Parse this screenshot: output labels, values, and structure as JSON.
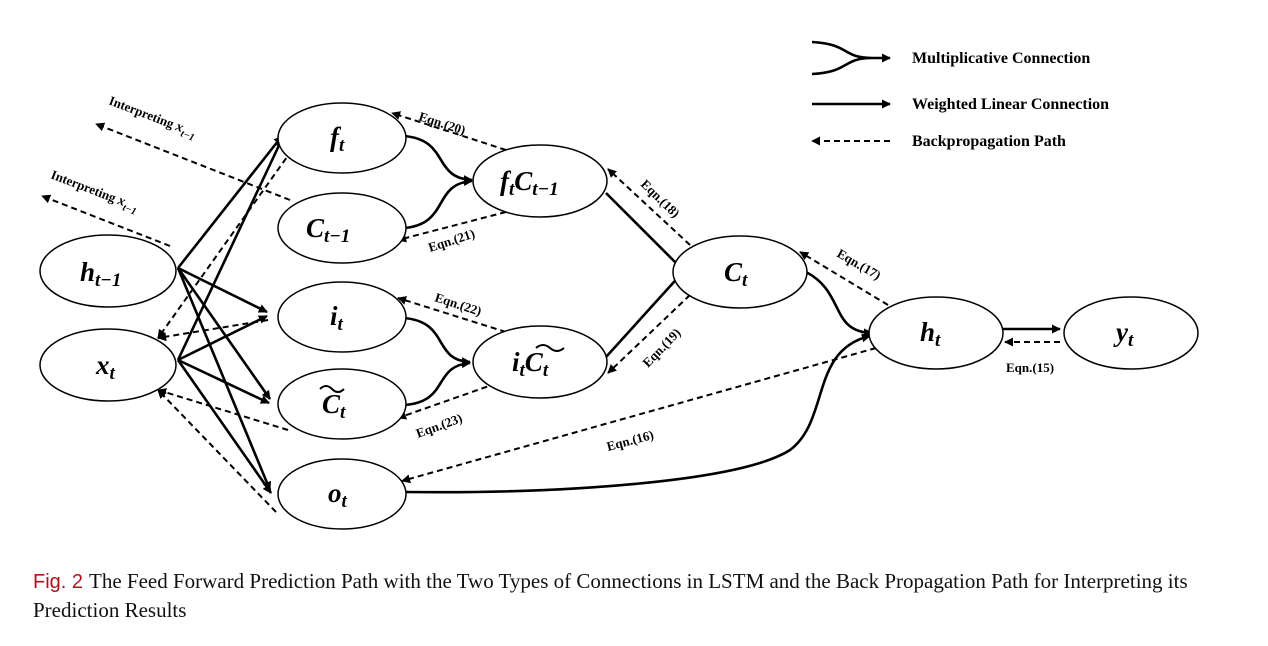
{
  "nodes": {
    "h_prev": {
      "main": "h",
      "sub": "t−1"
    },
    "x_t": {
      "main": "x",
      "sub": "t"
    },
    "f_t": {
      "main": "f",
      "sub": "t"
    },
    "c_prev": {
      "main": "C",
      "sub": "t−1"
    },
    "i_t": {
      "main": "i",
      "sub": "t"
    },
    "c_tilde": {
      "main": "C",
      "sub": "t"
    },
    "o_t": {
      "main": "o",
      "sub": "t"
    },
    "fc": {
      "main": "f",
      "sub": "t",
      "main2": "C",
      "sub2": "t−1"
    },
    "ic": {
      "main": "i",
      "sub": "t",
      "main2": "C",
      "sub2": "t"
    },
    "c_t": {
      "main": "C",
      "sub": "t"
    },
    "h_t": {
      "main": "h",
      "sub": "t"
    },
    "y_t": {
      "main": "y",
      "sub": "t"
    }
  },
  "equations": {
    "e15": "Eqn.(15)",
    "e16": "Eqn.(16)",
    "e17": "Eqn.(17)",
    "e18": "Eqn.(18)",
    "e19": "Eqn.(19)",
    "e20": "Eqn.(20)",
    "e21": "Eqn.(21)",
    "e22": "Eqn.(22)",
    "e23": "Eqn.(23)"
  },
  "interpreting": {
    "prefix": "Interpreting ",
    "var": "x",
    "sub": "t−1"
  },
  "legend": {
    "multiplicative": "Multiplicative Connection",
    "weighted": "Weighted Linear Connection",
    "backprop": "Backpropagation Path"
  },
  "caption": {
    "fig_label": "Fig. 2",
    "text": "The Feed Forward Prediction Path with the Two Types of Connections in LSTM and the Back Propagation Path for Interpreting its Prediction Results"
  }
}
